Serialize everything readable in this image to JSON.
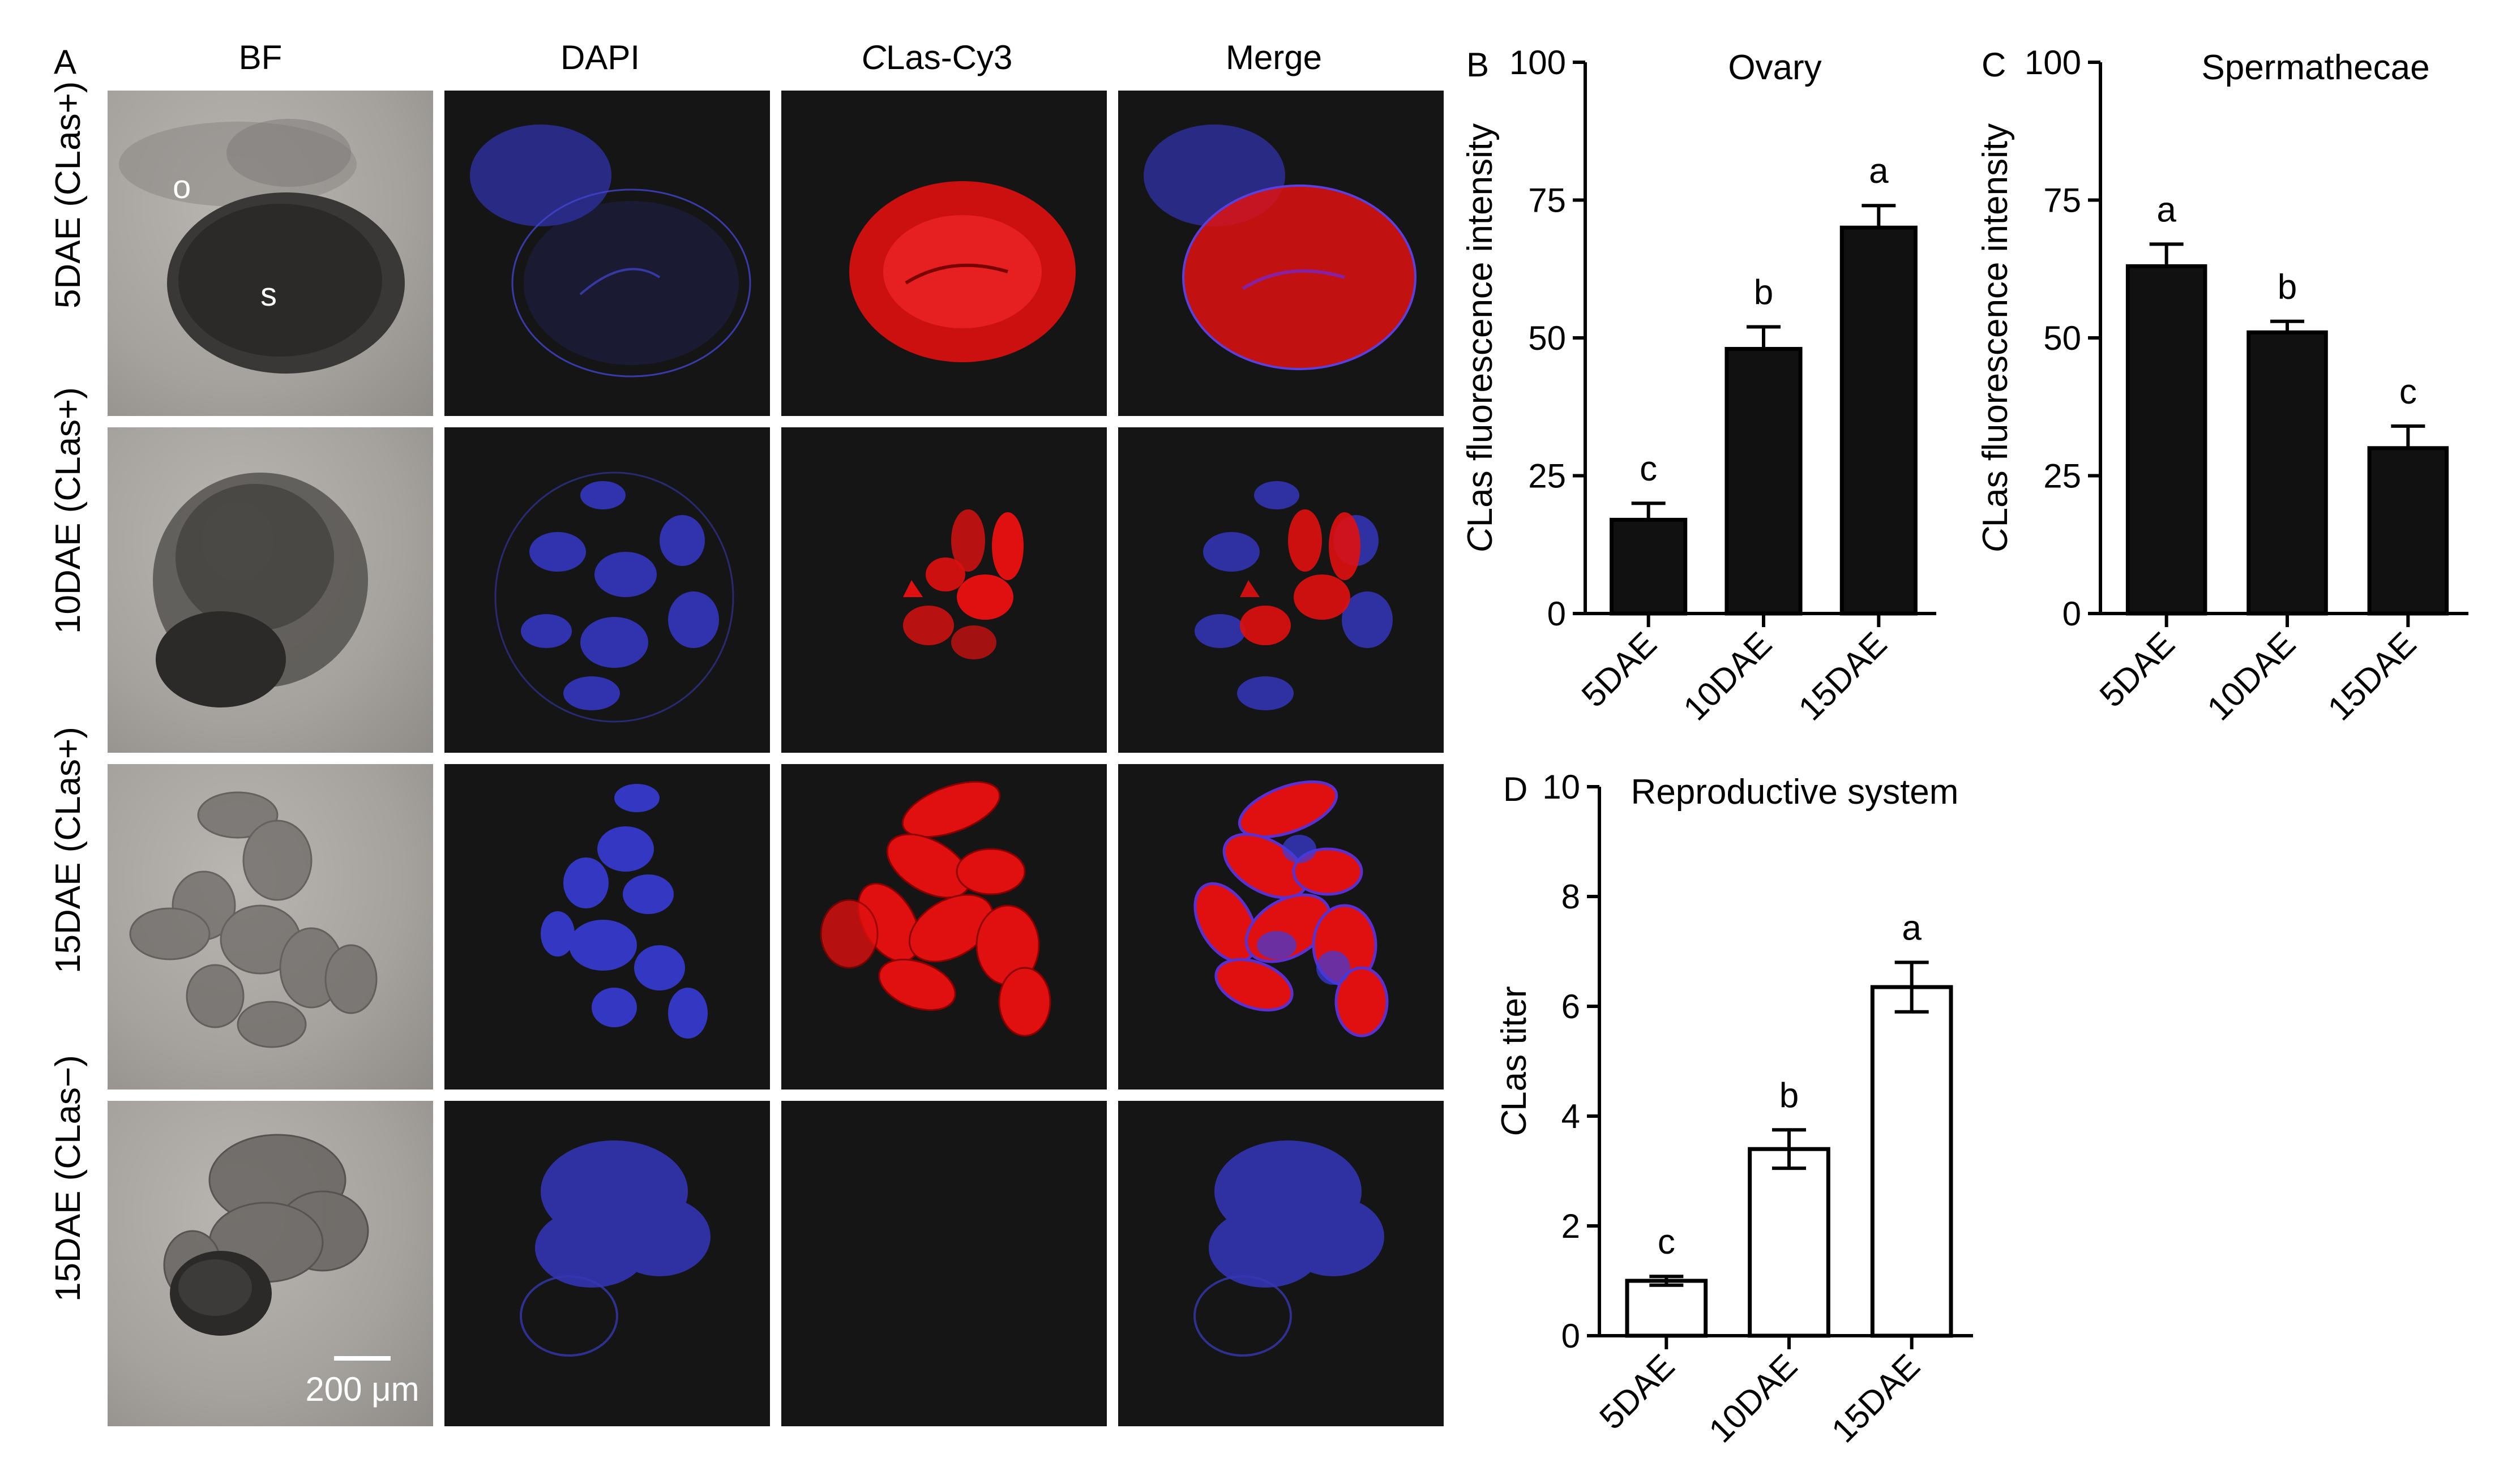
{
  "panel_letters": {
    "a": "A",
    "b": "B",
    "c": "C",
    "d": "D"
  },
  "micrograph": {
    "columns": [
      "BF",
      "DAPI",
      "CLas-Cy3",
      "Merge"
    ],
    "column_italic_prefix": "C",
    "column_cy3_rest": "Las-Cy3",
    "rows": [
      "5DAE (CLas+)",
      "10DAE (CLas+)",
      "15DAE (CLas+)",
      "15DAE (CLas−)"
    ],
    "annotations": {
      "ovary": "o",
      "spermatheca": "s"
    },
    "scale_bar": "200 μm",
    "colors": {
      "dapi": "#3a3de0",
      "cy3": "#e01010",
      "background": "#151515",
      "bf": "#a8a5a1"
    }
  },
  "chart_data": [
    {
      "id": "B",
      "type": "bar",
      "title": "Ovary",
      "ylabel": "CLas fluorescence intensity",
      "ylabel_italic": "C",
      "ylabel_rest": "Las fluorescence intensity",
      "categories": [
        "5DAE",
        "10DAE",
        "15DAE"
      ],
      "values": [
        17,
        48,
        70
      ],
      "errors": [
        3,
        4,
        4
      ],
      "letters": [
        "c",
        "b",
        "a"
      ],
      "ylim": [
        0,
        100
      ],
      "yticks": [
        "0",
        "25",
        "50",
        "75",
        "100"
      ],
      "fill": "#111111"
    },
    {
      "id": "C",
      "type": "bar",
      "title": "Spermathecae",
      "ylabel": "CLas fluorescence intensity",
      "ylabel_italic": "C",
      "ylabel_rest": "Las fluorescence intensity",
      "categories": [
        "5DAE",
        "10DAE",
        "15DAE"
      ],
      "values": [
        63,
        51,
        30
      ],
      "errors": [
        4,
        2,
        4
      ],
      "letters": [
        "a",
        "b",
        "c"
      ],
      "ylim": [
        0,
        100
      ],
      "yticks": [
        "0",
        "25",
        "50",
        "75",
        "100"
      ],
      "fill": "#111111"
    },
    {
      "id": "D",
      "type": "bar",
      "title": "Reproductive system",
      "ylabel": "CLas titer",
      "ylabel_italic": "C",
      "ylabel_rest": "Las titer",
      "categories": [
        "5DAE",
        "10DAE",
        "15DAE"
      ],
      "values": [
        1.0,
        3.4,
        6.35
      ],
      "errors": [
        0.08,
        0.35,
        0.45
      ],
      "letters": [
        "c",
        "b",
        "a"
      ],
      "ylim": [
        0,
        10
      ],
      "yticks": [
        "0",
        "2",
        "4",
        "6",
        "8",
        "10"
      ],
      "fill": "#ffffff"
    }
  ]
}
